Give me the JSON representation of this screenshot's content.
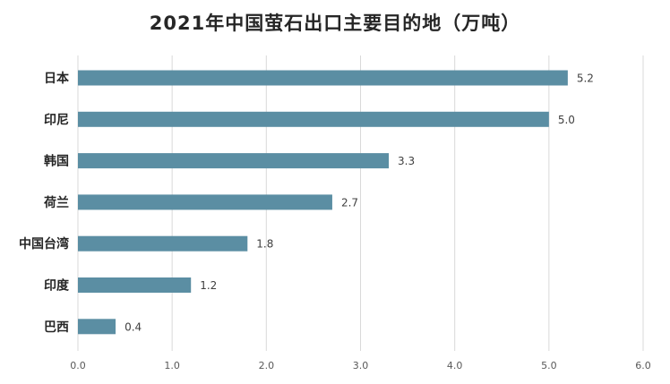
{
  "chart_data": {
    "type": "bar",
    "orientation": "horizontal",
    "title": "2021年中国萤石出口主要目的地（万吨）",
    "categories": [
      "日本",
      "印尼",
      "韩国",
      "荷兰",
      "中国台湾",
      "印度",
      "巴西"
    ],
    "values": [
      5.2,
      5.0,
      3.3,
      2.7,
      1.8,
      1.2,
      0.4
    ],
    "value_labels": [
      "5.2",
      "5.0",
      "3.3",
      "2.7",
      "1.8",
      "1.2",
      "0.4"
    ],
    "xlim": [
      0,
      6
    ],
    "xticks": [
      "0.0",
      "1.0",
      "2.0",
      "3.0",
      "4.0",
      "5.0",
      "6.0"
    ],
    "xtick_values": [
      0,
      1,
      2,
      3,
      4,
      5,
      6
    ],
    "grid": "vertical",
    "bar_color": "#5b8ea3"
  }
}
